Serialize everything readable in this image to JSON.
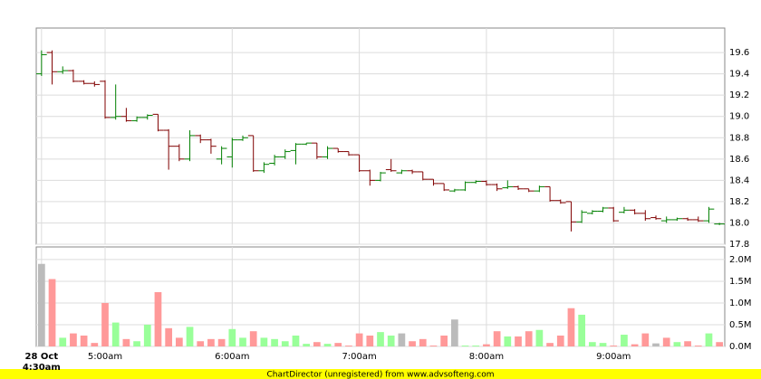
{
  "chart_data": {
    "type": "ohlc",
    "categories": [
      "4:30am",
      null,
      null,
      null,
      null,
      null,
      "5:00am",
      null,
      null,
      null,
      null,
      null,
      null,
      null,
      null,
      null,
      null,
      null,
      "6:00am",
      null,
      null,
      null,
      null,
      null,
      null,
      null,
      null,
      null,
      null,
      null,
      "7:00am",
      null,
      null,
      null,
      null,
      null,
      null,
      null,
      null,
      null,
      null,
      null,
      "8:00am",
      null,
      null,
      null,
      null,
      null,
      null,
      null,
      null,
      null,
      null,
      null,
      "9:00am",
      null,
      null,
      null,
      null,
      null,
      null,
      null,
      null,
      null,
      null
    ],
    "date_label": "28 Oct",
    "open": [
      19.4,
      19.6,
      19.42,
      19.43,
      19.33,
      19.31,
      19.33,
      18.99,
      19.0,
      18.96,
      18.99,
      19.02,
      18.87,
      18.72,
      18.6,
      18.82,
      18.78,
      18.6,
      18.62,
      18.78,
      18.82,
      18.49,
      18.56,
      18.62,
      18.68,
      18.74,
      18.75,
      18.62,
      18.7,
      18.67,
      18.64,
      18.49,
      18.4,
      18.5,
      18.47,
      18.49,
      18.48,
      18.41,
      18.37,
      18.3,
      18.31,
      18.38,
      18.39,
      18.36,
      18.33,
      18.34,
      18.32,
      18.3,
      18.34,
      18.21,
      18.2,
      18.01,
      18.09,
      18.11,
      18.14,
      18.1,
      18.12,
      18.09,
      18.05,
      18.02,
      18.03,
      18.04,
      18.03,
      18.02,
      17.99
    ],
    "high": [
      19.62,
      19.62,
      19.47,
      19.44,
      19.34,
      19.33,
      19.34,
      19.3,
      19.08,
      19.0,
      19.02,
      19.02,
      18.88,
      18.74,
      18.87,
      18.83,
      18.79,
      18.72,
      18.8,
      18.82,
      18.82,
      18.57,
      18.64,
      18.69,
      18.75,
      18.75,
      18.75,
      18.72,
      18.7,
      18.67,
      18.64,
      18.5,
      18.48,
      18.6,
      18.5,
      18.5,
      18.48,
      18.41,
      18.37,
      18.32,
      18.39,
      18.4,
      18.4,
      18.37,
      18.4,
      18.35,
      18.32,
      18.35,
      18.34,
      18.22,
      18.2,
      18.12,
      18.12,
      18.15,
      18.15,
      18.15,
      18.13,
      18.12,
      18.07,
      18.06,
      18.05,
      18.05,
      18.06,
      18.15,
      18.0
    ],
    "low": [
      19.38,
      19.3,
      19.4,
      19.32,
      19.3,
      19.28,
      18.98,
      18.97,
      18.95,
      18.95,
      18.97,
      18.86,
      18.5,
      18.58,
      18.58,
      18.75,
      18.65,
      18.55,
      18.52,
      18.77,
      18.48,
      18.47,
      18.54,
      18.6,
      18.55,
      18.73,
      18.6,
      18.6,
      18.66,
      18.63,
      18.48,
      18.35,
      18.39,
      18.48,
      18.46,
      18.46,
      18.4,
      18.35,
      18.3,
      18.29,
      18.3,
      18.37,
      18.35,
      18.3,
      18.32,
      18.31,
      18.29,
      18.29,
      18.2,
      18.18,
      17.92,
      18.0,
      18.08,
      18.1,
      18.01,
      18.09,
      18.08,
      18.02,
      18.03,
      18.0,
      18.02,
      18.02,
      18.01,
      18.0,
      17.98
    ],
    "close": [
      19.58,
      19.42,
      19.43,
      19.33,
      19.31,
      19.3,
      18.99,
      19.0,
      18.96,
      18.99,
      19.01,
      18.87,
      18.72,
      18.6,
      18.82,
      18.78,
      18.72,
      18.7,
      18.78,
      18.8,
      18.49,
      18.55,
      18.62,
      18.67,
      18.74,
      18.75,
      18.62,
      18.7,
      18.67,
      18.64,
      18.49,
      18.4,
      18.47,
      18.49,
      18.49,
      18.48,
      18.41,
      18.37,
      18.31,
      18.31,
      18.38,
      18.39,
      18.36,
      18.32,
      18.34,
      18.32,
      18.3,
      18.34,
      18.21,
      18.19,
      18.01,
      18.1,
      18.11,
      18.14,
      18.02,
      18.12,
      18.09,
      18.04,
      18.04,
      18.03,
      18.04,
      18.03,
      18.02,
      18.13,
      17.99
    ],
    "volume": [
      1.9,
      1.55,
      0.2,
      0.3,
      0.25,
      0.08,
      1.0,
      0.55,
      0.17,
      0.12,
      0.5,
      1.25,
      0.42,
      0.2,
      0.45,
      0.12,
      0.17,
      0.17,
      0.4,
      0.2,
      0.35,
      0.2,
      0.17,
      0.12,
      0.25,
      0.06,
      0.1,
      0.06,
      0.08,
      0.02,
      0.3,
      0.25,
      0.33,
      0.25,
      0.3,
      0.12,
      0.17,
      0.02,
      0.25,
      0.62,
      0.02,
      0.02,
      0.05,
      0.35,
      0.23,
      0.23,
      0.35,
      0.38,
      0.08,
      0.25,
      0.88,
      0.73,
      0.1,
      0.08,
      0.02,
      0.27,
      0.05,
      0.3,
      0.07,
      0.2,
      0.1,
      0.12,
      0.02,
      0.3,
      0.1
    ],
    "up_color": "#008000",
    "down_color": "#800000",
    "volume_colors": {
      "up": "#99ff99",
      "down": "#ff9999",
      "flat": "#bbbbbb"
    },
    "ylim": [
      17.8,
      19.83
    ],
    "yticks": [
      17.8,
      {
        "value": 18.0,
        "label": "18.0"
      },
      18.2,
      18.4,
      18.6,
      18.8,
      {
        "value": 19.0,
        "label": "19.0"
      },
      19.2,
      19.4,
      19.6
    ],
    "y2lim": [
      0,
      2.29
    ],
    "y2ticks": [
      {
        "value": 0,
        "label": "0.0M"
      },
      {
        "value": 0.5,
        "label": "0.5M"
      },
      {
        "value": 1.0,
        "label": "1.0M"
      },
      {
        "value": 1.5,
        "label": "1.5M"
      },
      {
        "value": 2.0,
        "label": "2.0M"
      }
    ],
    "grid": true,
    "footer": "ChartDirector (unregistered) from www.advsofteng.com"
  }
}
